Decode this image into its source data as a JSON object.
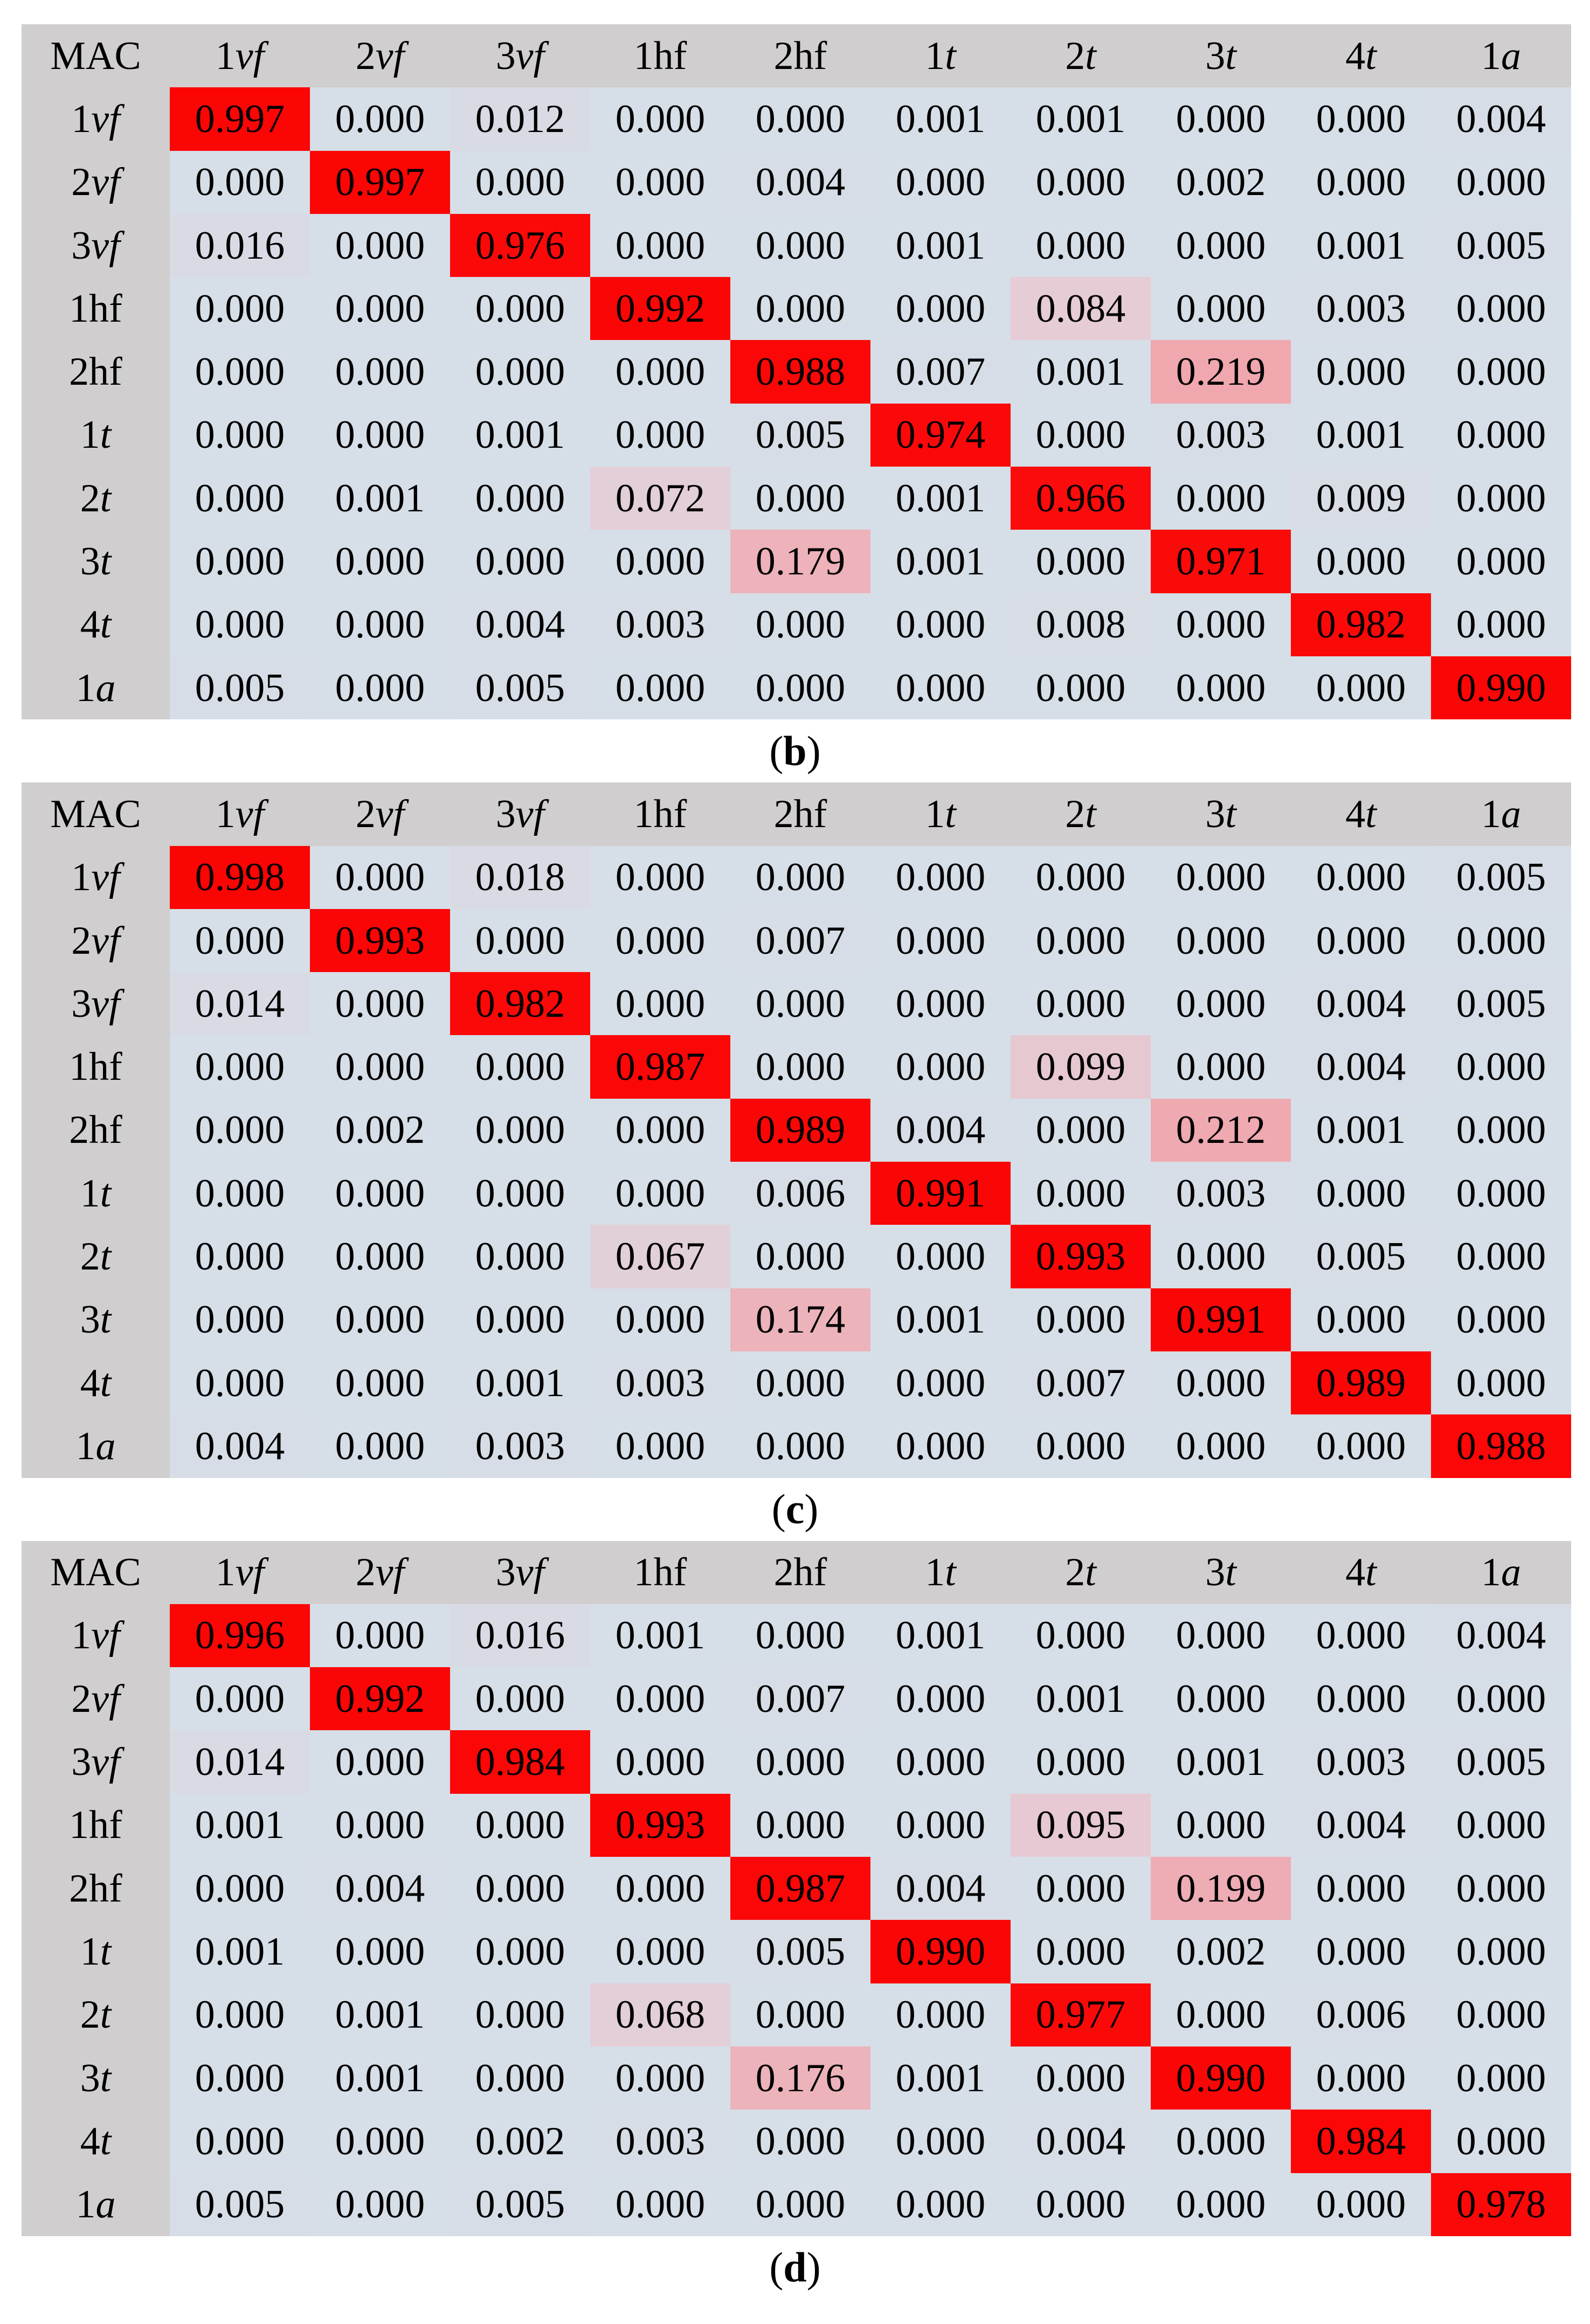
{
  "figure": {
    "description_visible_text_only": "",
    "corner_header": "MAC",
    "column_headers": [
      "1vf",
      "2vf",
      "3vf",
      "1hf",
      "2hf",
      "1t",
      "2t",
      "3t",
      "4t",
      "1a"
    ],
    "italic_suffixes": [
      "vf",
      "t",
      "a"
    ]
  },
  "colors": {
    "page_bg": "#ffffff",
    "header_bg": "#d0cece",
    "label_col_bg": "#d0cece",
    "cell_text": "#000000",
    "heat_stops": [
      {
        "v": 0.0,
        "c": [
          214,
          222,
          231
        ]
      },
      {
        "v": 0.084,
        "c": [
          229,
          204,
          213
        ]
      },
      {
        "v": 0.219,
        "c": [
          240,
          167,
          174
        ]
      },
      {
        "v": 1.0,
        "c": [
          251,
          4,
          4
        ]
      }
    ]
  },
  "chart_data": [
    {
      "type": "heatmap",
      "title": "(b)",
      "caption": "(b)",
      "corner_label": "MAC",
      "x_labels": [
        "1vf",
        "2vf",
        "3vf",
        "1hf",
        "2hf",
        "1t",
        "2t",
        "3t",
        "4t",
        "1a"
      ],
      "y_labels": [
        "1vf",
        "2vf",
        "3vf",
        "1hf",
        "2hf",
        "1t",
        "2t",
        "3t",
        "4t",
        "1a"
      ],
      "cells": [
        [
          "0.997",
          "0.000",
          "0.012",
          "0.000",
          "0.000",
          "0.001",
          "0.001",
          "0.000",
          "0.000",
          "0.004"
        ],
        [
          "0.000",
          "0.997",
          "0.000",
          "0.000",
          "0.004",
          "0.000",
          "0.000",
          "0.002",
          "0.000",
          "0.000"
        ],
        [
          "0.016",
          "0.000",
          "0.976",
          "0.000",
          "0.000",
          "0.001",
          "0.000",
          "0.000",
          "0.001",
          "0.005"
        ],
        [
          "0.000",
          "0.000",
          "0.000",
          "0.992",
          "0.000",
          "0.000",
          "0.084",
          "0.000",
          "0.003",
          "0.000"
        ],
        [
          "0.000",
          "0.000",
          "0.000",
          "0.000",
          "0.988",
          "0.007",
          "0.001",
          "0.219",
          "0.000",
          "0.000"
        ],
        [
          "0.000",
          "0.000",
          "0.001",
          "0.000",
          "0.005",
          "0.974",
          "0.000",
          "0.003",
          "0.001",
          "0.000"
        ],
        [
          "0.000",
          "0.001",
          "0.000",
          "0.072",
          "0.000",
          "0.001",
          "0.966",
          "0.000",
          "0.009",
          "0.000"
        ],
        [
          "0.000",
          "0.000",
          "0.000",
          "0.000",
          "0.179",
          "0.001",
          "0.000",
          "0.971",
          "0.000",
          "0.000"
        ],
        [
          "0.000",
          "0.000",
          "0.004",
          "0.003",
          "0.000",
          "0.000",
          "0.008",
          "0.000",
          "0.982",
          "0.000"
        ],
        [
          "0.005",
          "0.000",
          "0.005",
          "0.000",
          "0.000",
          "0.000",
          "0.000",
          "0.000",
          "0.000",
          "0.990"
        ]
      ]
    },
    {
      "type": "heatmap",
      "title": "(c)",
      "caption": "(c)",
      "corner_label": "MAC",
      "x_labels": [
        "1vf",
        "2vf",
        "3vf",
        "1hf",
        "2hf",
        "1t",
        "2t",
        "3t",
        "4t",
        "1a"
      ],
      "y_labels": [
        "1vf",
        "2vf",
        "3vf",
        "1hf",
        "2hf",
        "1t",
        "2t",
        "3t",
        "4t",
        "1a"
      ],
      "cells": [
        [
          "0.998",
          "0.000",
          "0.018",
          "0.000",
          "0.000",
          "0.000",
          "0.000",
          "0.000",
          "0.000",
          "0.005"
        ],
        [
          "0.000",
          "0.993",
          "0.000",
          "0.000",
          "0.007",
          "0.000",
          "0.000",
          "0.000",
          "0.000",
          "0.000"
        ],
        [
          "0.014",
          "0.000",
          "0.982",
          "0.000",
          "0.000",
          "0.000",
          "0.000",
          "0.000",
          "0.004",
          "0.005"
        ],
        [
          "0.000",
          "0.000",
          "0.000",
          "0.987",
          "0.000",
          "0.000",
          "0.099",
          "0.000",
          "0.004",
          "0.000"
        ],
        [
          "0.000",
          "0.002",
          "0.000",
          "0.000",
          "0.989",
          "0.004",
          "0.000",
          "0.212",
          "0.001",
          "0.000"
        ],
        [
          "0.000",
          "0.000",
          "0.000",
          "0.000",
          "0.006",
          "0.991",
          "0.000",
          "0.003",
          "0.000",
          "0.000"
        ],
        [
          "0.000",
          "0.000",
          "0.000",
          "0.067",
          "0.000",
          "0.000",
          "0.993",
          "0.000",
          "0.005",
          "0.000"
        ],
        [
          "0.000",
          "0.000",
          "0.000",
          "0.000",
          "0.174",
          "0.001",
          "0.000",
          "0.991",
          "0.000",
          "0.000"
        ],
        [
          "0.000",
          "0.000",
          "0.001",
          "0.003",
          "0.000",
          "0.000",
          "0.007",
          "0.000",
          "0.989",
          "0.000"
        ],
        [
          "0.004",
          "0.000",
          "0.003",
          "0.000",
          "0.000",
          "0.000",
          "0.000",
          "0.000",
          "0.000",
          "0.988"
        ]
      ]
    },
    {
      "type": "heatmap",
      "title": "(d)",
      "caption": "(d)",
      "corner_label": "MAC",
      "x_labels": [
        "1vf",
        "2vf",
        "3vf",
        "1hf",
        "2hf",
        "1t",
        "2t",
        "3t",
        "4t",
        "1a"
      ],
      "y_labels": [
        "1vf",
        "2vf",
        "3vf",
        "1hf",
        "2hf",
        "1t",
        "2t",
        "3t",
        "4t",
        "1a"
      ],
      "cells": [
        [
          "0.996",
          "0.000",
          "0.016",
          "0.001",
          "0.000",
          "0.001",
          "0.000",
          "0.000",
          "0.000",
          "0.004"
        ],
        [
          "0.000",
          "0.992",
          "0.000",
          "0.000",
          "0.007",
          "0.000",
          "0.001",
          "0.000",
          "0.000",
          "0.000"
        ],
        [
          "0.014",
          "0.000",
          "0.984",
          "0.000",
          "0.000",
          "0.000",
          "0.000",
          "0.001",
          "0.003",
          "0.005"
        ],
        [
          "0.001",
          "0.000",
          "0.000",
          "0.993",
          "0.000",
          "0.000",
          "0.095",
          "0.000",
          "0.004",
          "0.000"
        ],
        [
          "0.000",
          "0.004",
          "0.000",
          "0.000",
          "0.987",
          "0.004",
          "0.000",
          "0.199",
          "0.000",
          "0.000"
        ],
        [
          "0.001",
          "0.000",
          "0.000",
          "0.000",
          "0.005",
          "0.990",
          "0.000",
          "0.002",
          "0.000",
          "0.000"
        ],
        [
          "0.000",
          "0.001",
          "0.000",
          "0.068",
          "0.000",
          "0.000",
          "0.977",
          "0.000",
          "0.006",
          "0.000"
        ],
        [
          "0.000",
          "0.001",
          "0.000",
          "0.000",
          "0.176",
          "0.001",
          "0.000",
          "0.990",
          "0.000",
          "0.000"
        ],
        [
          "0.000",
          "0.000",
          "0.002",
          "0.003",
          "0.000",
          "0.000",
          "0.004",
          "0.000",
          "0.984",
          "0.000"
        ],
        [
          "0.005",
          "0.000",
          "0.005",
          "0.000",
          "0.000",
          "0.000",
          "0.000",
          "0.000",
          "0.000",
          "0.978"
        ]
      ]
    }
  ]
}
